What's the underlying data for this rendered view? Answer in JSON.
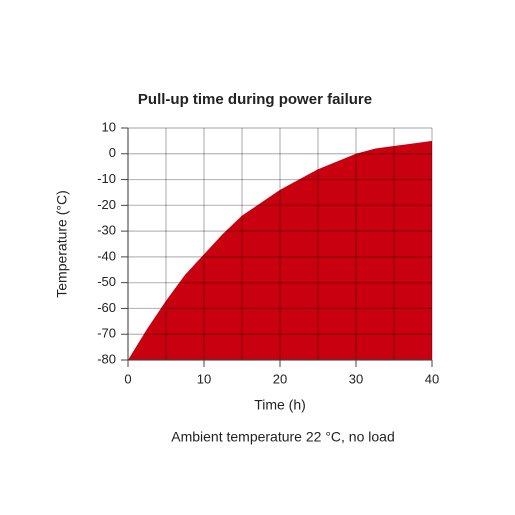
{
  "chart_data": {
    "type": "area",
    "title": "Pull-up time during power failure",
    "xlabel": "Time (h)",
    "ylabel": "Temperature (°C)",
    "note": "Ambient temperature 22 °C, no load",
    "x": [
      0,
      2.5,
      5,
      7.5,
      10,
      12.5,
      15,
      17.5,
      20,
      22.5,
      25,
      27.5,
      30,
      32.5,
      35,
      37.5,
      40
    ],
    "values": [
      -80,
      -68,
      -57,
      -47,
      -39,
      -31,
      -24,
      -19,
      -14,
      -10,
      -6,
      -3,
      0,
      2,
      3,
      4,
      5
    ],
    "color": "#c8000f",
    "xlim": [
      0,
      40
    ],
    "ylim": [
      -80,
      10
    ],
    "xticks": [
      0,
      10,
      20,
      30,
      40
    ],
    "xgrid": [
      0,
      5,
      10,
      15,
      20,
      25,
      30,
      35,
      40
    ],
    "yticks": [
      10,
      0,
      -10,
      -20,
      -30,
      -40,
      -50,
      -60,
      -70,
      -80
    ],
    "grid": true
  }
}
